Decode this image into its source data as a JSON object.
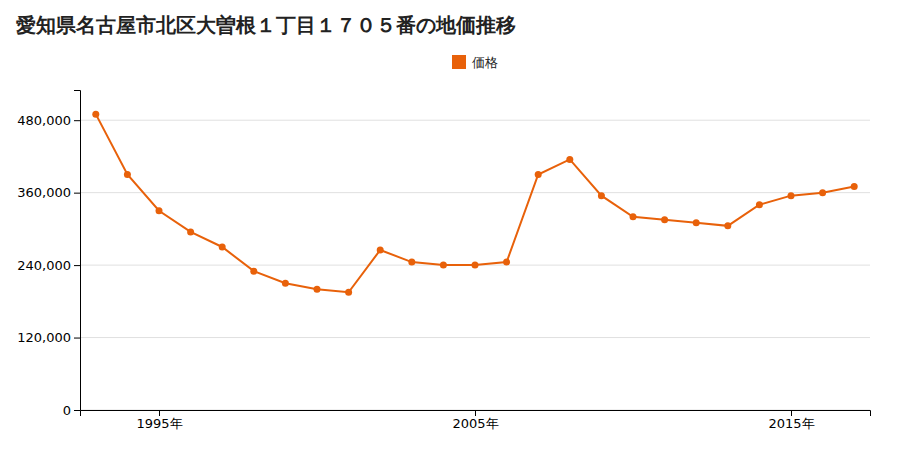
{
  "chart_data": {
    "type": "line",
    "title": "愛知県名古屋市北区大曽根１丁目１７０５番の地価推移",
    "x": [
      1993,
      1994,
      1995,
      1996,
      1997,
      1998,
      1999,
      2000,
      2001,
      2002,
      2003,
      2004,
      2005,
      2006,
      2007,
      2008,
      2009,
      2010,
      2011,
      2012,
      2013,
      2014,
      2015,
      2016,
      2017
    ],
    "series": [
      {
        "name": "価格",
        "color": "#E8610A",
        "marker": "circle",
        "line_style": "solid",
        "values": [
          490000,
          390000,
          330000,
          295000,
          270000,
          230000,
          210000,
          200000,
          195000,
          265000,
          245000,
          240000,
          240000,
          245000,
          390000,
          415000,
          355000,
          320000,
          315000,
          310000,
          305000,
          340000,
          355000,
          360000,
          370000
        ]
      }
    ],
    "xlim": [
      1992.5,
      2017.5
    ],
    "xticks": [
      {
        "value": 1995,
        "label": "1995年"
      },
      {
        "value": 2005,
        "label": "2005年"
      },
      {
        "value": 2015,
        "label": "2015年"
      }
    ],
    "ylim": [
      0,
      530000
    ],
    "yticks": [
      0,
      {
        "value": 120000,
        "label": "120,000"
      },
      {
        "value": 240000,
        "label": "240,000"
      },
      {
        "value": 360000,
        "label": "360,000"
      },
      {
        "value": 480000,
        "label": "480,000"
      }
    ],
    "grid": true,
    "legend": "top"
  }
}
